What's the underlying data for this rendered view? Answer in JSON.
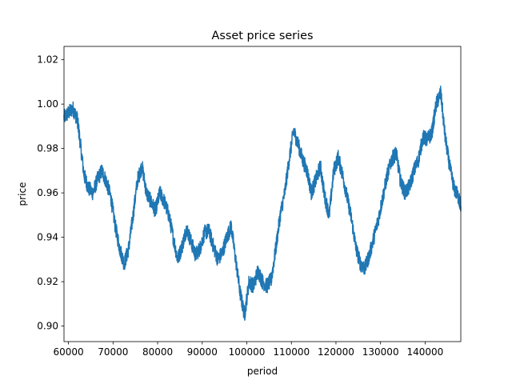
{
  "chart_data": {
    "type": "line",
    "title": "Asset price series",
    "xlabel": "period",
    "ylabel": "price",
    "xlim": [
      59000,
      148000
    ],
    "ylim": [
      0.893,
      1.026
    ],
    "x_ticks": [
      {
        "value": 60000,
        "label": "60000"
      },
      {
        "value": 70000,
        "label": "70000"
      },
      {
        "value": 80000,
        "label": "80000"
      },
      {
        "value": 90000,
        "label": "90000"
      },
      {
        "value": 100000,
        "label": "100000"
      },
      {
        "value": 110000,
        "label": "110000"
      },
      {
        "value": 120000,
        "label": "120000"
      },
      {
        "value": 130000,
        "label": "130000"
      },
      {
        "value": 140000,
        "label": "140000"
      }
    ],
    "y_ticks": [
      {
        "value": 0.9,
        "label": "0.90"
      },
      {
        "value": 0.92,
        "label": "0.92"
      },
      {
        "value": 0.94,
        "label": "0.94"
      },
      {
        "value": 0.96,
        "label": "0.96"
      },
      {
        "value": 0.98,
        "label": "0.98"
      },
      {
        "value": 1.0,
        "label": "1.00"
      },
      {
        "value": 1.02,
        "label": "1.02"
      }
    ],
    "grid": false,
    "line_color": "#1f77b4",
    "noise_amplitude": 0.0035,
    "series": [
      {
        "x": [
          59000,
          60000,
          61000,
          62000,
          62500,
          63500,
          64500,
          65500,
          66500,
          67500,
          68500,
          69500,
          70500,
          71500,
          72500,
          73500,
          74500,
          75500,
          76500,
          77500,
          78500,
          79500,
          80500,
          81500,
          82500,
          83500,
          84500,
          85500,
          86500,
          87500,
          88500,
          89500,
          90500,
          91500,
          92500,
          93500,
          94500,
          95500,
          96500,
          97500,
          98500,
          99500,
          100500,
          101500,
          102500,
          103500,
          104500,
          105500,
          106500,
          107500,
          108500,
          109500,
          110500,
          111500,
          112500,
          113500,
          114500,
          115500,
          116500,
          117500,
          118500,
          119500,
          120500,
          121500,
          122500,
          123500,
          124500,
          125500,
          126500,
          127500,
          128500,
          129500,
          130500,
          131500,
          132500,
          133500,
          134500,
          135500,
          136500,
          137500,
          138500,
          139500,
          140500,
          141500,
          142500,
          143500,
          144500,
          145500,
          146500,
          147500,
          148000
        ],
        "y": [
          0.994,
          0.996,
          0.998,
          0.993,
          0.985,
          0.968,
          0.962,
          0.96,
          0.966,
          0.97,
          0.965,
          0.958,
          0.945,
          0.935,
          0.928,
          0.935,
          0.95,
          0.966,
          0.972,
          0.96,
          0.956,
          0.952,
          0.96,
          0.956,
          0.95,
          0.94,
          0.93,
          0.936,
          0.944,
          0.938,
          0.932,
          0.935,
          0.942,
          0.943,
          0.936,
          0.93,
          0.933,
          0.94,
          0.945,
          0.93,
          0.915,
          0.905,
          0.92,
          0.918,
          0.925,
          0.92,
          0.918,
          0.921,
          0.935,
          0.95,
          0.96,
          0.975,
          0.988,
          0.982,
          0.975,
          0.97,
          0.96,
          0.966,
          0.972,
          0.958,
          0.95,
          0.97,
          0.976,
          0.968,
          0.958,
          0.948,
          0.935,
          0.928,
          0.926,
          0.932,
          0.94,
          0.948,
          0.958,
          0.968,
          0.975,
          0.978,
          0.965,
          0.96,
          0.963,
          0.97,
          0.975,
          0.985,
          0.984,
          0.987,
          1.0,
          1.005,
          0.985,
          0.972,
          0.962,
          0.958,
          0.954
        ]
      }
    ]
  }
}
